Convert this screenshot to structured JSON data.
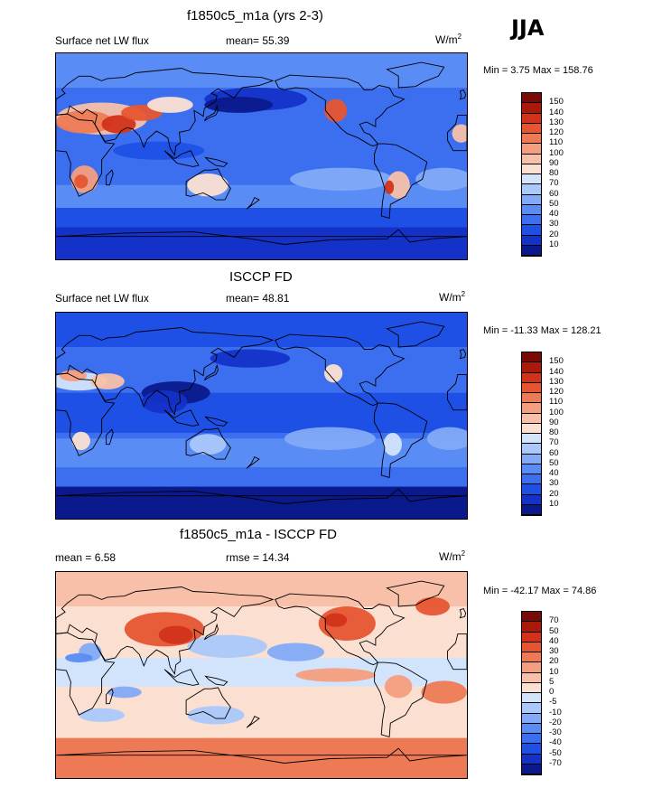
{
  "season": "JJA",
  "panels": [
    {
      "title": "f1850c5_m1a (yrs 2-3)",
      "left_label": "Surface net LW flux",
      "stat_text": "mean=  55.39",
      "units": "W/m",
      "units_sup": "2",
      "minmax": "Min =   3.75 Max = 158.76",
      "colorbar_labels": [
        "150",
        "140",
        "130",
        "120",
        "110",
        "100",
        "90",
        "80",
        "70",
        "60",
        "50",
        "40",
        "30",
        "20",
        "10"
      ]
    },
    {
      "title": "ISCCP FD",
      "left_label": "Surface net LW flux",
      "stat_text": "mean=  48.81",
      "units": "W/m",
      "units_sup": "2",
      "minmax": "Min = -11.33 Max = 128.21",
      "colorbar_labels": [
        "150",
        "140",
        "130",
        "120",
        "110",
        "100",
        "90",
        "80",
        "70",
        "60",
        "50",
        "40",
        "30",
        "20",
        "10"
      ]
    },
    {
      "title": "f1850c5_m1a - ISCCP FD",
      "left_label": "mean =   6.58",
      "stat_text": "rmse =  14.34",
      "units": "W/m",
      "units_sup": "2",
      "minmax": "Min = -42.17 Max =  74.86",
      "colorbar_labels": [
        "70",
        "50",
        "40",
        "30",
        "20",
        "10",
        "5",
        "0",
        "-5",
        "-10",
        "-20",
        "-30",
        "-40",
        "-50",
        "-70"
      ]
    }
  ],
  "palettes": {
    "abs": [
      "#0a1a8c",
      "#1432c8",
      "#1e50e6",
      "#3c6ef0",
      "#5a8cf5",
      "#82aaf7",
      "#aac8fa",
      "#d2e4fc",
      "#fbe0d2",
      "#f8c0a8",
      "#f49e80",
      "#ee7a55",
      "#e65530",
      "#d2321a",
      "#aa1a0a",
      "#7a0a06"
    ],
    "diff": [
      "#0a1a8c",
      "#1432c8",
      "#1e50e6",
      "#3c6ef0",
      "#5a8cf5",
      "#82aaf7",
      "#aac8fa",
      "#d2e4fc",
      "#fbe0d2",
      "#f8c0a8",
      "#f49e80",
      "#ee7a55",
      "#e65530",
      "#d2321a",
      "#aa1a0a",
      "#7a0a06"
    ]
  },
  "chart_data": [
    {
      "type": "heatmap",
      "title": "f1850c5_m1a (yrs 2-3)",
      "variable": "Surface net LW flux",
      "season": "JJA",
      "units": "W/m2",
      "mean": 55.39,
      "min": 3.75,
      "max": 158.76,
      "levels": [
        10,
        20,
        30,
        40,
        50,
        60,
        70,
        80,
        90,
        100,
        110,
        120,
        130,
        140,
        150
      ]
    },
    {
      "type": "heatmap",
      "title": "ISCCP FD",
      "variable": "Surface net LW flux",
      "season": "JJA",
      "units": "W/m2",
      "mean": 48.81,
      "min": -11.33,
      "max": 128.21,
      "levels": [
        10,
        20,
        30,
        40,
        50,
        60,
        70,
        80,
        90,
        100,
        110,
        120,
        130,
        140,
        150
      ]
    },
    {
      "type": "heatmap",
      "title": "f1850c5_m1a - ISCCP FD",
      "variable": "difference",
      "season": "JJA",
      "units": "W/m2",
      "mean": 6.58,
      "rmse": 14.34,
      "min": -42.17,
      "max": 74.86,
      "levels": [
        -70,
        -50,
        -40,
        -30,
        -20,
        -10,
        -5,
        0,
        5,
        10,
        20,
        30,
        40,
        50,
        70
      ]
    }
  ]
}
